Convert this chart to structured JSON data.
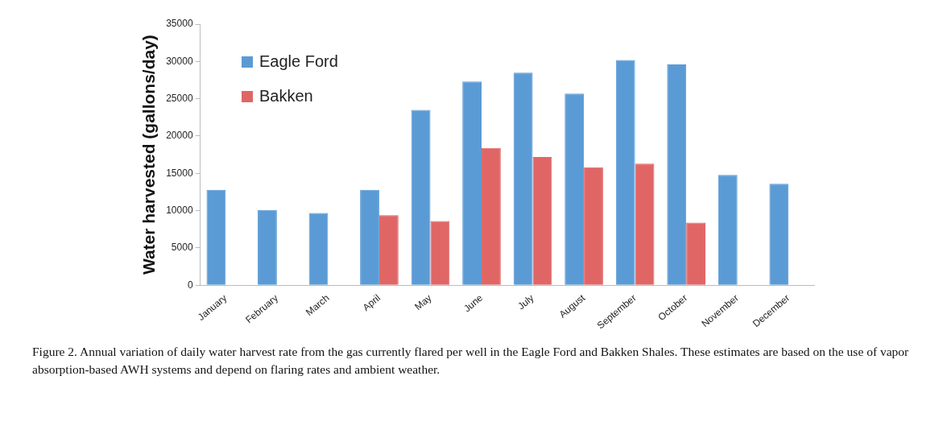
{
  "chart_data": {
    "type": "bar",
    "ylabel": "Water harvested (gallons/day)",
    "categories": [
      "January",
      "February",
      "March",
      "April",
      "May",
      "June",
      "July",
      "August",
      "September",
      "October",
      "November",
      "December"
    ],
    "series": [
      {
        "name": "Eagle Ford",
        "color": "#5b9bd5",
        "values": [
          12800,
          10100,
          9700,
          12800,
          23500,
          27300,
          28500,
          25700,
          30200,
          29600,
          14800,
          13600
        ]
      },
      {
        "name": "Bakken",
        "color": "#e06666",
        "values": [
          null,
          null,
          null,
          9400,
          8600,
          18400,
          17200,
          15800,
          16300,
          8400,
          null,
          null
        ]
      }
    ],
    "ylim": [
      0,
      35000
    ],
    "yticks": [
      0,
      5000,
      10000,
      15000,
      20000,
      25000,
      30000,
      35000
    ],
    "grid": false,
    "legend": "top left",
    "annotations": [
      "Figure 2. Annual variation of daily water harvest rate from the gas currently flared per well in the Eagle Ford and Bakken Shales. These estimates are based on the use of vapor absorption-based AWH systems and depend on flaring rates and ambient weather."
    ]
  }
}
